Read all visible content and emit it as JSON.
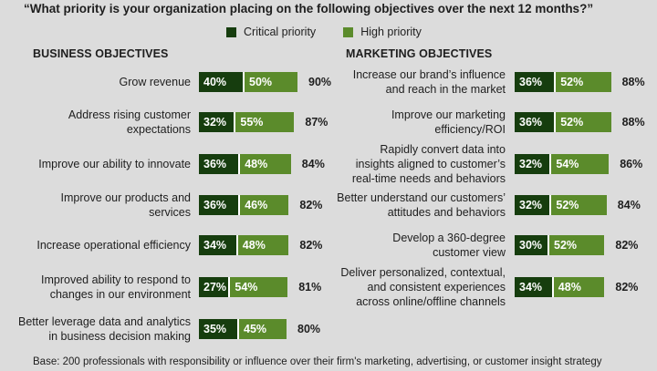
{
  "chart_data": {
    "type": "bar",
    "title": "“What priority is your organization placing on the following objectives over the next 12 months?”",
    "legend": [
      "Critical priority",
      "High priority"
    ],
    "colors": {
      "critical": "#163d0e",
      "high": "#5b8b2b"
    },
    "footnote": "Base: 200 professionals with responsibility or influence over their firm's marketing, advertising, or customer insight strategy",
    "panels": [
      {
        "title": "BUSINESS OBJECTIVES",
        "items": [
          {
            "label": "Grow revenue",
            "critical": 40,
            "high": 50,
            "total": 90,
            "critical_text": "40%",
            "high_text": "50%",
            "total_text": "90%"
          },
          {
            "label": "Address rising customer\nexpectations",
            "critical": 32,
            "high": 55,
            "total": 87,
            "critical_text": "32%",
            "high_text": "55%",
            "total_text": "87%"
          },
          {
            "label": "Improve our ability to innovate",
            "critical": 36,
            "high": 48,
            "total": 84,
            "critical_text": "36%",
            "high_text": "48%",
            "total_text": "84%"
          },
          {
            "label": "Improve our products and\nservices",
            "critical": 36,
            "high": 46,
            "total": 82,
            "critical_text": "36%",
            "high_text": "46%",
            "total_text": "82%"
          },
          {
            "label": "Increase operational efficiency",
            "critical": 34,
            "high": 48,
            "total": 82,
            "critical_text": "34%",
            "high_text": "48%",
            "total_text": "82%"
          },
          {
            "label": "Improved ability to respond to\nchanges in our environment",
            "critical": 27,
            "high": 54,
            "total": 81,
            "critical_text": "27%",
            "high_text": "54%",
            "total_text": "81%"
          },
          {
            "label": "Better leverage data and analytics\nin business decision making",
            "critical": 35,
            "high": 45,
            "total": 80,
            "critical_text": "35%",
            "high_text": "45%",
            "total_text": "80%"
          }
        ]
      },
      {
        "title": "MARKETING OBJECTIVES",
        "items": [
          {
            "label": "Increase our brand’s influence\nand reach in the market",
            "critical": 36,
            "high": 52,
            "total": 88,
            "critical_text": "36%",
            "high_text": "52%",
            "total_text": "88%"
          },
          {
            "label": "Improve our marketing\nefficiency/ROI",
            "critical": 36,
            "high": 52,
            "total": 88,
            "critical_text": "36%",
            "high_text": "52%",
            "total_text": "88%"
          },
          {
            "label": "Rapidly convert data into\ninsights aligned to customer’s\nreal-time needs and behaviors",
            "critical": 32,
            "high": 54,
            "total": 86,
            "critical_text": "32%",
            "high_text": "54%",
            "total_text": "86%"
          },
          {
            "label": "Better understand our customers’\nattitudes and behaviors",
            "critical": 32,
            "high": 52,
            "total": 84,
            "critical_text": "32%",
            "high_text": "52%",
            "total_text": "84%"
          },
          {
            "label": "Develop a 360-degree\ncustomer view",
            "critical": 30,
            "high": 52,
            "total": 82,
            "critical_text": "30%",
            "high_text": "52%",
            "total_text": "82%"
          },
          {
            "label": "Deliver personalized, contextual,\nand consistent experiences\nacross online/offline channels",
            "critical": 34,
            "high": 48,
            "total": 82,
            "critical_text": "34%",
            "high_text": "48%",
            "total_text": "82%"
          }
        ]
      }
    ]
  }
}
